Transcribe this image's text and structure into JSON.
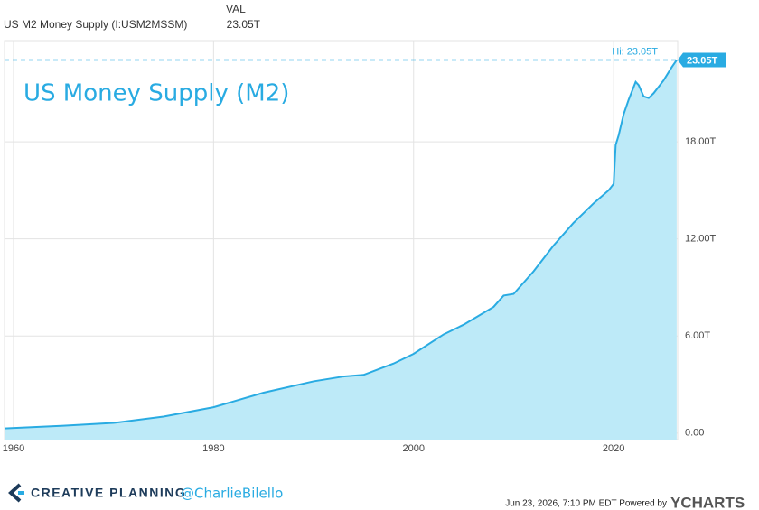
{
  "chart_data": {
    "type": "area",
    "header_label": "VAL",
    "series_label": "US M2 Money Supply (I:USM2MSSM)",
    "title": "US Money Supply (M2)",
    "hi": {
      "value": 23.05,
      "label": "Hi: 23.05T"
    },
    "last": {
      "value": 23.05,
      "label": "23.05T"
    },
    "x": [
      1959.1,
      1965,
      1970,
      1975,
      1980,
      1985,
      1990,
      1993,
      1995,
      1998,
      2000,
      2003,
      2005,
      2008,
      2009,
      2010,
      2012,
      2014,
      2016,
      2018,
      2019.5,
      2020.0,
      2020.2,
      2020.5,
      2021,
      2021.5,
      2022.2,
      2022.5,
      2023,
      2023.5,
      2024,
      2025,
      2025.8,
      2026.3
    ],
    "series": [
      {
        "name": "US M2 Money Supply",
        "color": "#29abe2",
        "values": [
          0.29,
          0.46,
          0.63,
          1.02,
          1.6,
          2.5,
          3.2,
          3.5,
          3.6,
          4.3,
          4.9,
          6.1,
          6.7,
          7.8,
          8.5,
          8.6,
          10.0,
          11.6,
          13.0,
          14.2,
          15.0,
          15.4,
          17.8,
          18.4,
          19.7,
          20.6,
          21.7,
          21.5,
          20.8,
          20.7,
          21.0,
          21.8,
          22.6,
          23.05
        ]
      }
    ],
    "fill_color": "#bdeaf8",
    "xlim": [
      1959.1,
      2026.4
    ],
    "xticks": [
      1960,
      1980,
      2000,
      2020
    ],
    "ylim": [
      -0.4,
      24.25
    ],
    "yticks": [
      {
        "value": 0,
        "label": "0.00"
      },
      {
        "value": 6,
        "label": "6.00T"
      },
      {
        "value": 12,
        "label": "12.00T"
      },
      {
        "value": 18,
        "label": "18.00T"
      }
    ],
    "grid": true,
    "footer": {
      "brand": "CREATIVE PLANNING",
      "handle": "@CharlieBilello",
      "timestamp": "Jun 23, 2026, 7:10 PM EDT Powered by",
      "powered": "YCHARTS"
    }
  }
}
